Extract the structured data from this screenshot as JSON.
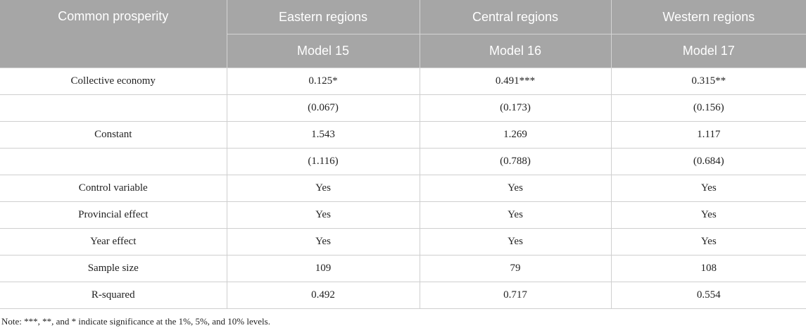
{
  "table": {
    "header": {
      "row_label": "Common prosperity",
      "regions": [
        "Eastern regions",
        "Central regions",
        "Western regions"
      ],
      "models": [
        "Model 15",
        "Model 16",
        "Model 17"
      ]
    },
    "rows": [
      {
        "label": "Collective economy",
        "values": [
          "0.125*",
          "0.491***",
          "0.315**"
        ]
      },
      {
        "label": "",
        "values": [
          "(0.067)",
          "(0.173)",
          "(0.156)"
        ]
      },
      {
        "label": "Constant",
        "values": [
          "1.543",
          "1.269",
          "1.117"
        ]
      },
      {
        "label": "",
        "values": [
          "(1.116)",
          "(0.788)",
          "(0.684)"
        ]
      },
      {
        "label": "Control variable",
        "values": [
          "Yes",
          "Yes",
          "Yes"
        ]
      },
      {
        "label": "Provincial effect",
        "values": [
          "Yes",
          "Yes",
          "Yes"
        ]
      },
      {
        "label": "Year effect",
        "values": [
          "Yes",
          "Yes",
          "Yes"
        ]
      },
      {
        "label": "Sample size",
        "values": [
          "109",
          "79",
          "108"
        ]
      },
      {
        "label": "R-squared",
        "values": [
          "0.492",
          "0.717",
          "0.554"
        ]
      }
    ],
    "note": "Note: ***, **, and * indicate significance at the 1%, 5%, and 10% levels."
  },
  "colors": {
    "header_background": "#a6a6a6",
    "header_text": "#ffffff"
  }
}
